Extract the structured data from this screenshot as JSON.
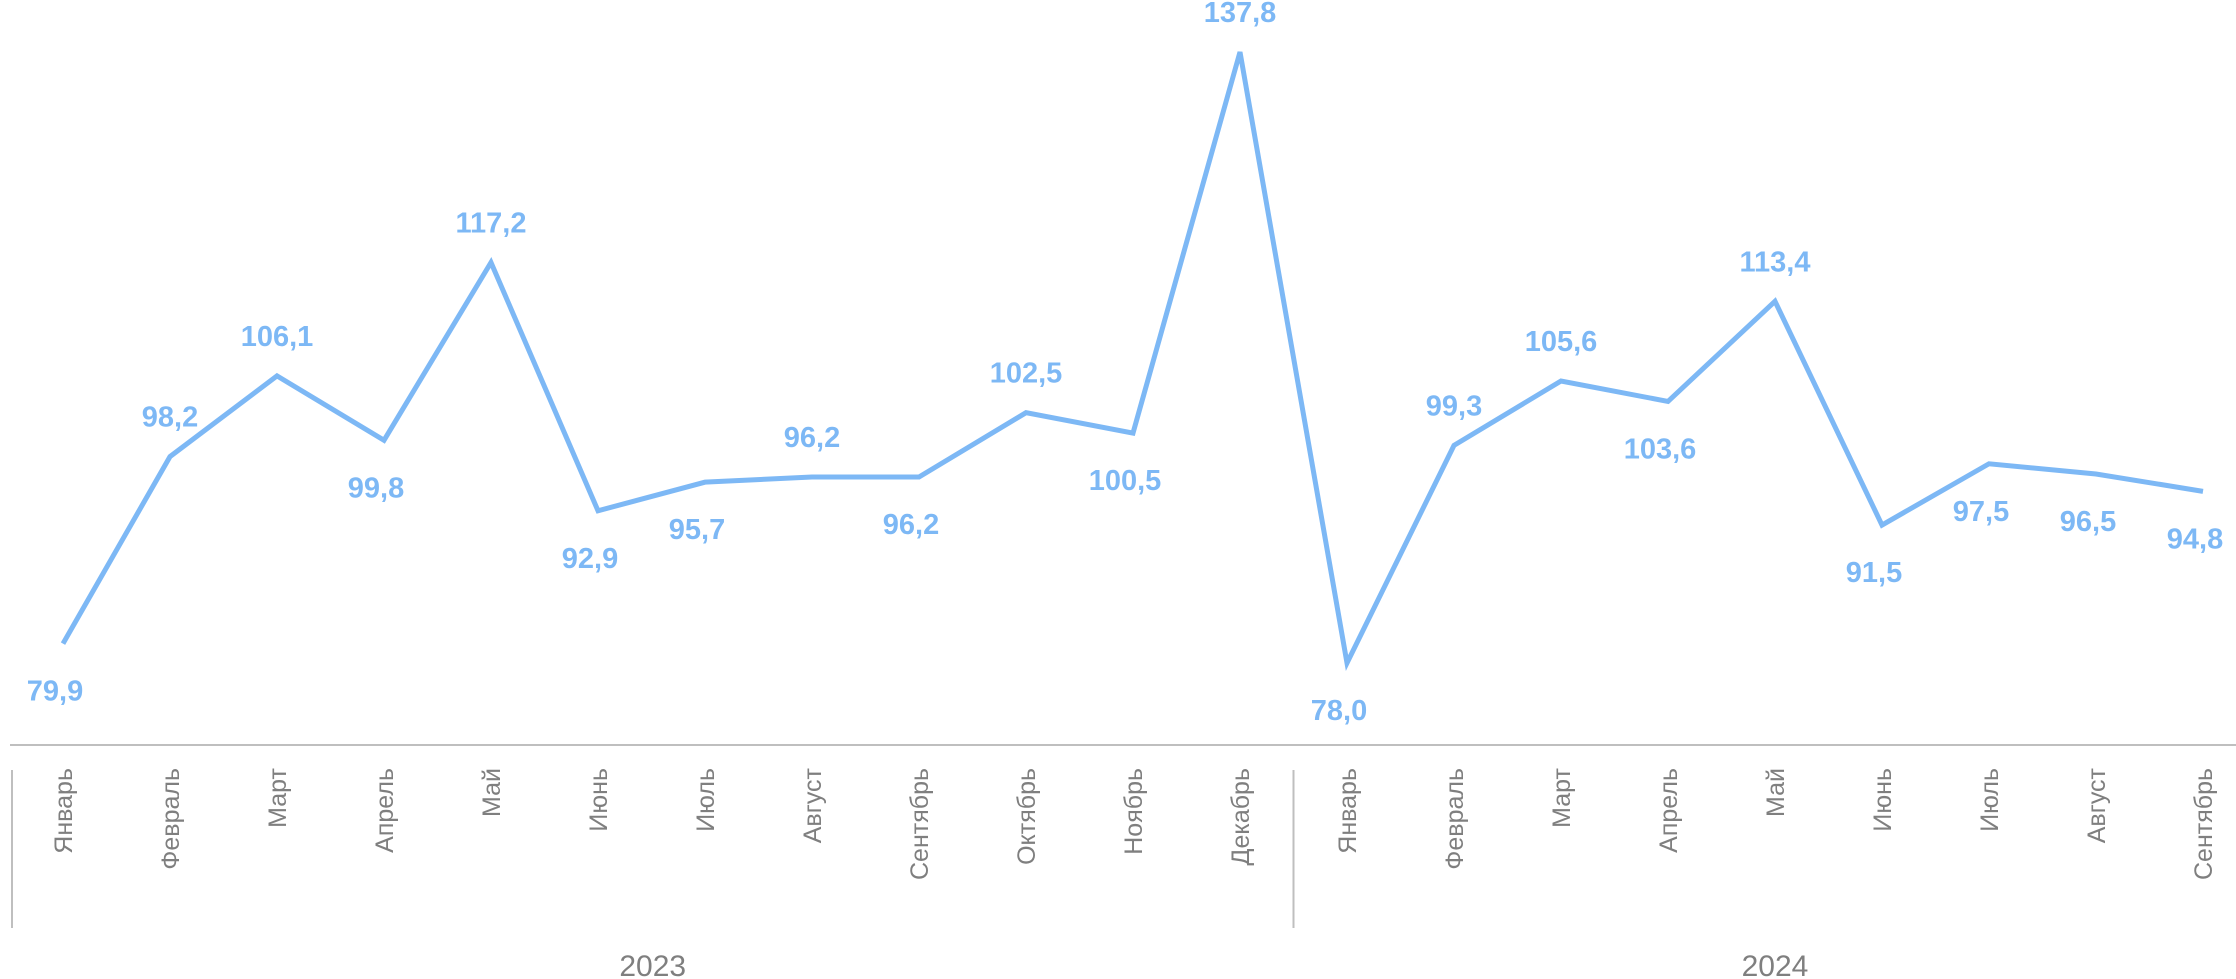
{
  "chart_data": {
    "type": "line",
    "title": "",
    "xlabel": "",
    "ylabel": "",
    "grid": false,
    "legend": "none",
    "categories": [
      "Январь",
      "Февраль",
      "Март",
      "Апрель",
      "Май",
      "Июнь",
      "Июль",
      "Август",
      "Сентябрь",
      "Октябрь",
      "Ноябрь",
      "Декабрь",
      "Январь",
      "Февраль",
      "Март",
      "Апрель",
      "Май",
      "Июнь",
      "Июль",
      "Август",
      "Сентябрь"
    ],
    "category_groups": [
      {
        "label": "2023",
        "count": 12
      },
      {
        "label": "2024",
        "count": 9
      }
    ],
    "series": [
      {
        "values": [
          79.9,
          98.2,
          106.1,
          99.8,
          117.2,
          92.9,
          95.7,
          96.2,
          96.2,
          102.5,
          100.5,
          137.8,
          78.0,
          99.3,
          105.6,
          103.6,
          113.4,
          91.5,
          97.5,
          96.5,
          94.8
        ],
        "labels": [
          "79,9",
          "98,2",
          "106,1",
          "99,8",
          "117,2",
          "92,9",
          "95,7",
          "96,2",
          "96,2",
          "102,5",
          "100,5",
          "137,8",
          "78,0",
          "99,3",
          "105,6",
          "103,6",
          "113,4",
          "91,5",
          "97,5",
          "96,5",
          "94,8"
        ],
        "label_positions": [
          "below",
          "above",
          "above",
          "below",
          "above",
          "below",
          "below",
          "above",
          "below",
          "above",
          "below",
          "above",
          "below",
          "above",
          "above",
          "below",
          "above",
          "below",
          "below",
          "below",
          "below"
        ],
        "color": "#7db8f5"
      }
    ],
    "colors": {
      "line": "#7db8f5",
      "axis": "#bfbfbf",
      "text": "#7f7f7f"
    }
  }
}
